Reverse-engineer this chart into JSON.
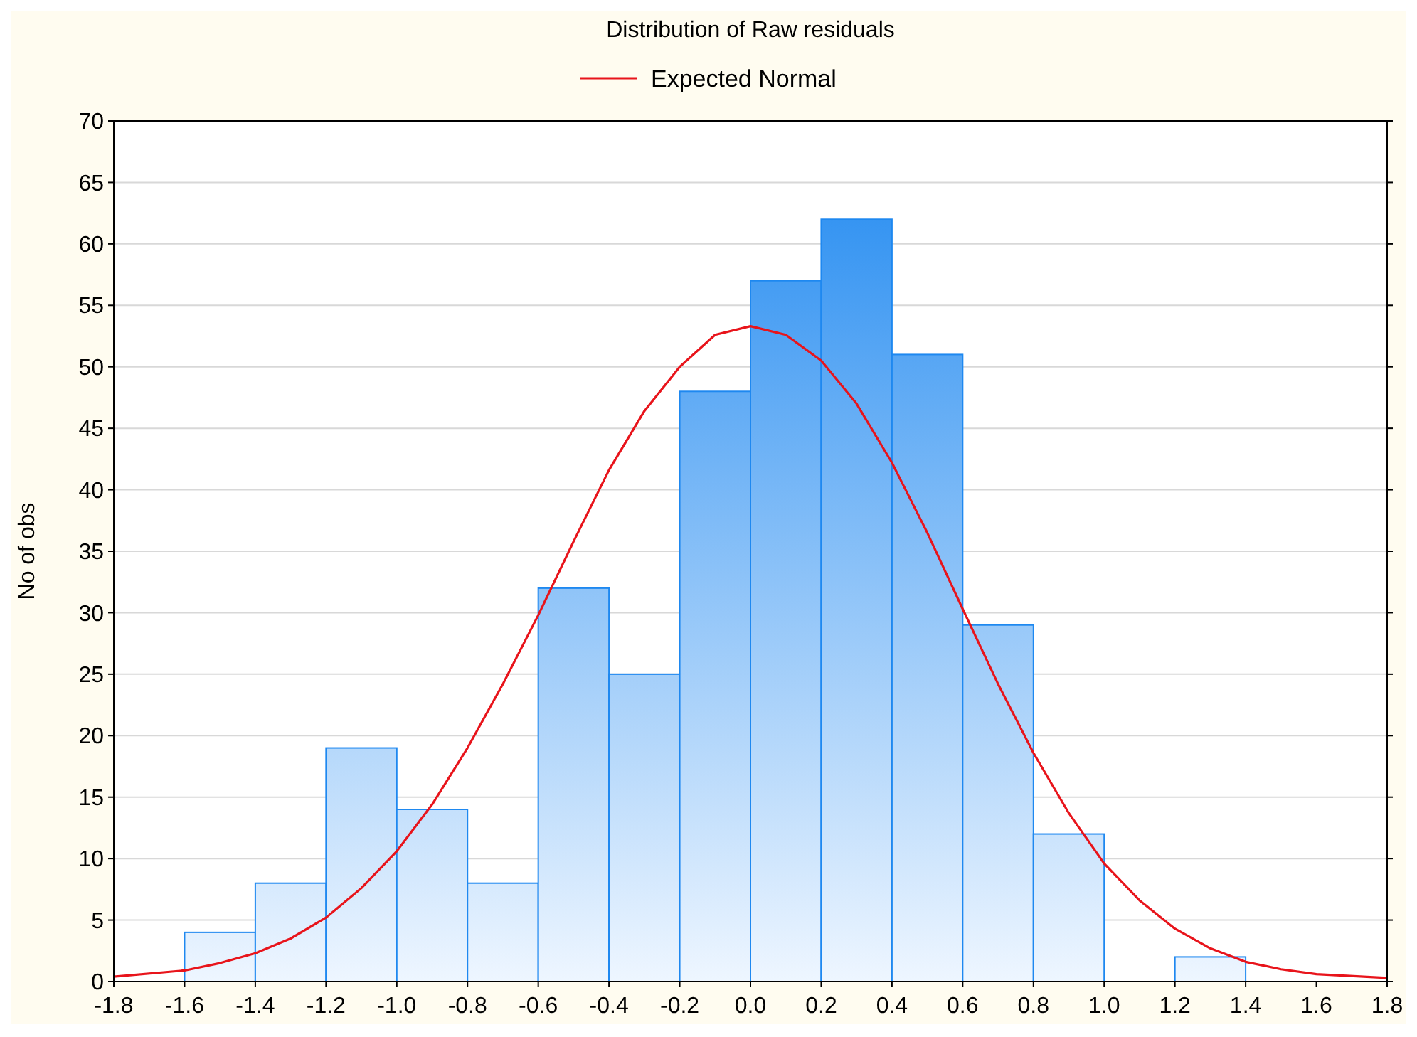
{
  "chart_data": {
    "type": "histogram",
    "title": "Distribution of Raw residuals",
    "ylabel": "No of obs",
    "bins": [
      -1.8,
      -1.6,
      -1.4,
      -1.2,
      -1.0,
      -0.8,
      -0.6,
      -0.4,
      -0.2,
      0.0,
      0.2,
      0.4,
      0.6,
      0.8,
      1.0,
      1.2,
      1.4,
      1.6,
      1.8
    ],
    "series": [
      {
        "color": "#1e88f0",
        "values": [
          0,
          4,
          8,
          19,
          14,
          8,
          32,
          25,
          48,
          57,
          62,
          51,
          29,
          12,
          0,
          2,
          0,
          0
        ]
      },
      {
        "type": "line",
        "name": "Expected Normal",
        "color": "#e8141b",
        "x": [
          -1.8,
          -1.6,
          -1.5,
          -1.4,
          -1.3,
          -1.2,
          -1.1,
          -1.0,
          -0.9,
          -0.8,
          -0.7,
          -0.6,
          -0.5,
          -0.4,
          -0.3,
          -0.2,
          -0.1,
          0.0,
          0.1,
          0.2,
          0.3,
          0.4,
          0.5,
          0.6,
          0.7,
          0.8,
          0.9,
          1.0,
          1.1,
          1.2,
          1.3,
          1.4,
          1.5,
          1.6,
          1.8
        ],
        "values": [
          0.4,
          0.9,
          1.5,
          2.3,
          3.5,
          5.2,
          7.6,
          10.6,
          14.4,
          19.0,
          24.2,
          29.8,
          35.8,
          41.6,
          46.4,
          50.0,
          52.6,
          53.3,
          52.6,
          50.5,
          47.0,
          42.2,
          36.5,
          30.3,
          24.2,
          18.6,
          13.7,
          9.6,
          6.6,
          4.3,
          2.7,
          1.6,
          1.0,
          0.6,
          0.3
        ]
      }
    ],
    "xlim": [
      -1.8,
      1.8
    ],
    "xticks": [
      -1.8,
      -1.6,
      -1.4,
      -1.2,
      {
        "value": -1.0,
        "label": "-1.0"
      },
      -0.8,
      -0.6,
      -0.4,
      -0.2,
      {
        "value": 0,
        "label": "0.0"
      },
      0.2,
      0.4,
      0.6,
      0.8,
      {
        "value": 1.0,
        "label": "1.0"
      },
      1.2,
      1.4,
      1.6,
      1.8
    ],
    "ylim": [
      0,
      70
    ],
    "yticks": [
      0,
      5,
      10,
      15,
      20,
      25,
      30,
      35,
      40,
      45,
      50,
      55,
      60,
      65,
      70
    ],
    "grid": "y",
    "legend": "top",
    "line_style": "solid",
    "marker": "none"
  }
}
